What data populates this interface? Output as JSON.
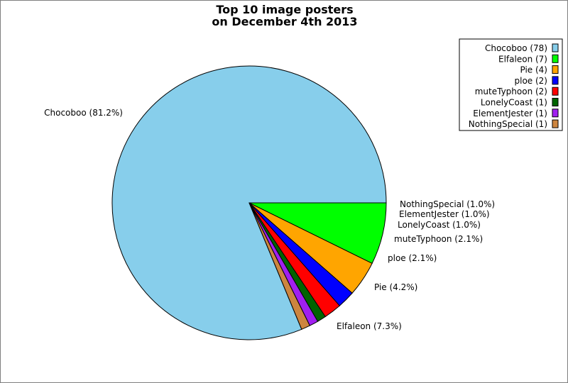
{
  "chart_data": {
    "type": "pie",
    "title": [
      "Top 10 image posters",
      "on December 4th 2013"
    ],
    "slices": [
      {
        "name": "Chocoboo",
        "count": 78,
        "percent_label": "Chocoboo (81.2%)",
        "legend_label": "Chocoboo (78)",
        "color": "#87ceeb"
      },
      {
        "name": "Elfaleon",
        "count": 7,
        "percent_label": "Elfaleon (7.3%)",
        "legend_label": "Elfaleon (7)",
        "color": "#00ff00"
      },
      {
        "name": "Pie",
        "count": 4,
        "percent_label": "Pie (4.2%)",
        "legend_label": "Pie (4)",
        "color": "#ffa500"
      },
      {
        "name": "ploe",
        "count": 2,
        "percent_label": "ploe (2.1%)",
        "legend_label": "ploe (2)",
        "color": "#0000ff"
      },
      {
        "name": "muteTyphoon",
        "count": 2,
        "percent_label": "muteTyphoon (2.1%)",
        "legend_label": "muteTyphoon (2)",
        "color": "#ff0000"
      },
      {
        "name": "LonelyCoast",
        "count": 1,
        "percent_label": "LonelyCoast (1.0%)",
        "legend_label": "LonelyCoast (1)",
        "color": "#006400"
      },
      {
        "name": "ElementJester",
        "count": 1,
        "percent_label": "ElementJester (1.0%)",
        "legend_label": "ElementJester (1)",
        "color": "#a020f0"
      },
      {
        "name": "NothingSpecial",
        "count": 1,
        "percent_label": "NothingSpecial (1.0%)",
        "legend_label": "NothingSpecial (1)",
        "color": "#cd853f"
      }
    ],
    "legend_position": "top-right"
  }
}
